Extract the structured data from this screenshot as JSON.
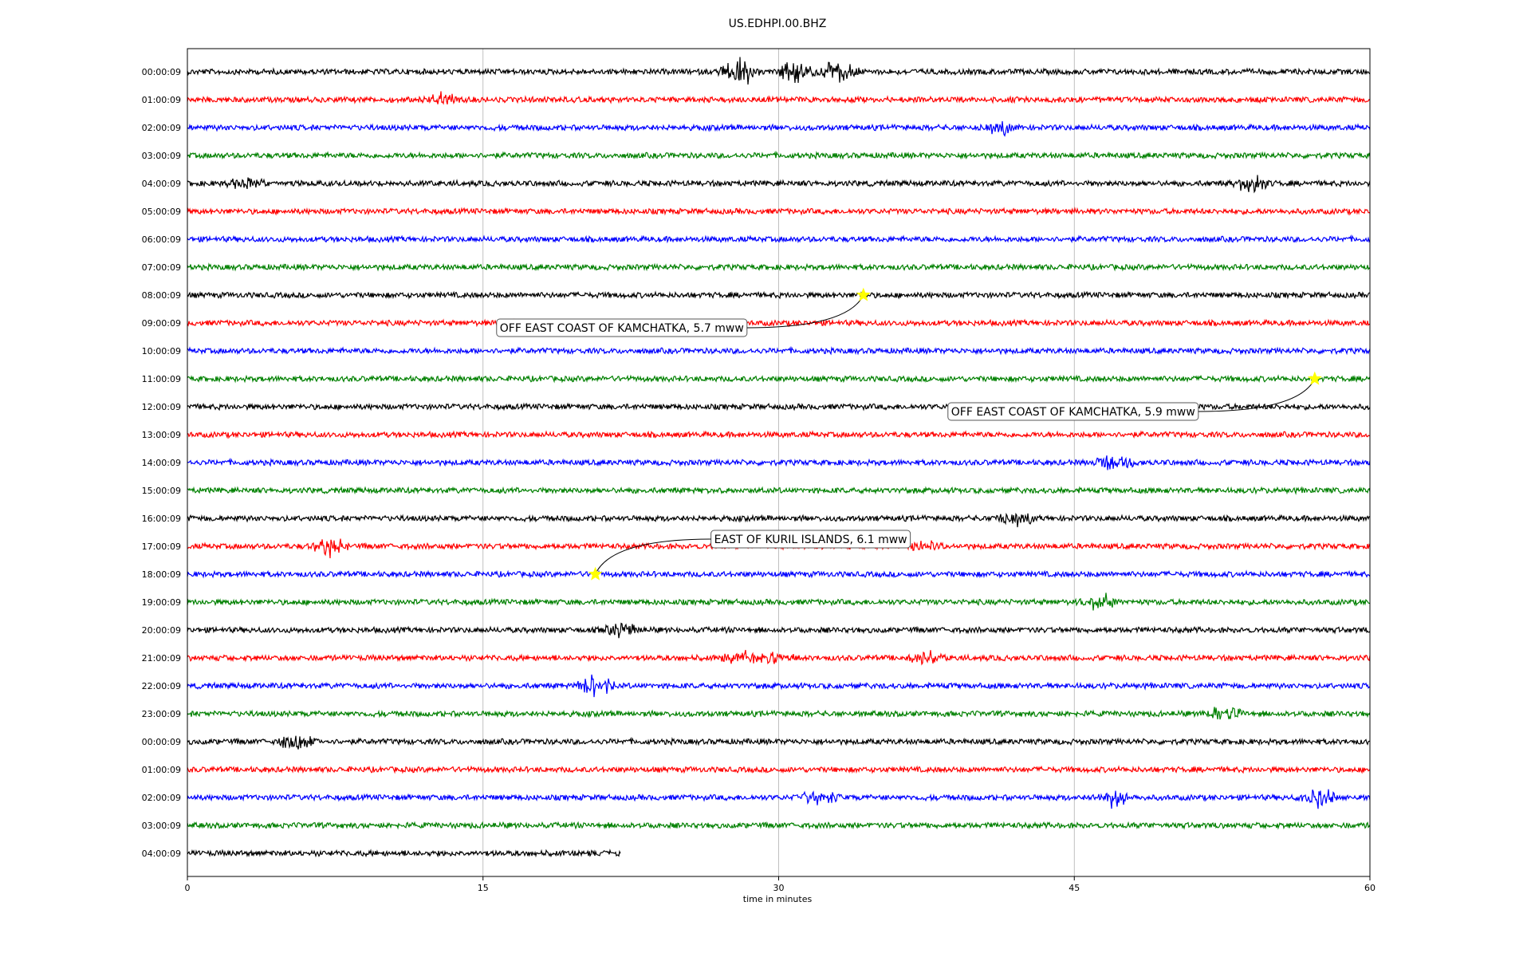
{
  "chart_data": {
    "type": "line",
    "title": "US.EDHPI.00.BHZ",
    "xlabel": "time in minutes",
    "ylabel": "",
    "xlim": [
      0,
      60
    ],
    "x_ticks": [
      0,
      15,
      30,
      45,
      60
    ],
    "grid": "vertical",
    "row_labels": [
      "00:00:09",
      "01:00:09",
      "02:00:09",
      "03:00:09",
      "04:00:09",
      "05:00:09",
      "06:00:09",
      "07:00:09",
      "08:00:09",
      "09:00:09",
      "10:00:09",
      "11:00:09",
      "12:00:09",
      "13:00:09",
      "14:00:09",
      "15:00:09",
      "16:00:09",
      "17:00:09",
      "18:00:09",
      "19:00:09",
      "20:00:09",
      "21:00:09",
      "22:00:09",
      "23:00:09",
      "00:00:09",
      "01:00:09",
      "02:00:09",
      "03:00:09",
      "04:00:09"
    ],
    "trace_colors": [
      "#000000",
      "#ff0000",
      "#0000ff",
      "#008000"
    ],
    "last_row_end_minute": 22,
    "bursts": [
      {
        "row": 0,
        "minute": 28,
        "amp": 22
      },
      {
        "row": 0,
        "minute": 30.8,
        "amp": 16
      },
      {
        "row": 0,
        "minute": 33,
        "amp": 18
      },
      {
        "row": 1,
        "minute": 13,
        "amp": 12
      },
      {
        "row": 2,
        "minute": 41.2,
        "amp": 10
      },
      {
        "row": 4,
        "minute": 3,
        "amp": 8
      },
      {
        "row": 4,
        "minute": 54,
        "amp": 16
      },
      {
        "row": 14,
        "minute": 47,
        "amp": 14
      },
      {
        "row": 16,
        "minute": 42,
        "amp": 12
      },
      {
        "row": 17,
        "minute": 7.2,
        "amp": 14
      },
      {
        "row": 17,
        "minute": 37.5,
        "amp": 8
      },
      {
        "row": 19,
        "minute": 46.3,
        "amp": 12
      },
      {
        "row": 20,
        "minute": 22,
        "amp": 9
      },
      {
        "row": 21,
        "minute": 28,
        "amp": 10
      },
      {
        "row": 21,
        "minute": 30,
        "amp": 10
      },
      {
        "row": 21,
        "minute": 37.5,
        "amp": 10
      },
      {
        "row": 22,
        "minute": 20.7,
        "amp": 18
      },
      {
        "row": 23,
        "minute": 52.5,
        "amp": 12
      },
      {
        "row": 24,
        "minute": 5.5,
        "amp": 14
      },
      {
        "row": 26,
        "minute": 32,
        "amp": 12
      },
      {
        "row": 26,
        "minute": 47,
        "amp": 12
      },
      {
        "row": 26,
        "minute": 57.3,
        "amp": 16
      }
    ],
    "events": [
      {
        "row": 8,
        "minute": 34.3,
        "label": "OFF EAST COAST OF KAMCHATKA, 5.7 mww",
        "label_side": "below-left"
      },
      {
        "row": 11,
        "minute": 57.2,
        "label": "OFF EAST COAST OF KAMCHATKA, 5.9 mww",
        "label_side": "below-left"
      },
      {
        "row": 18,
        "minute": 20.7,
        "label": "EAST OF KURIL ISLANDS, 6.1 mww",
        "label_side": "above-right"
      }
    ],
    "event_marker_color": "#ffff00"
  }
}
